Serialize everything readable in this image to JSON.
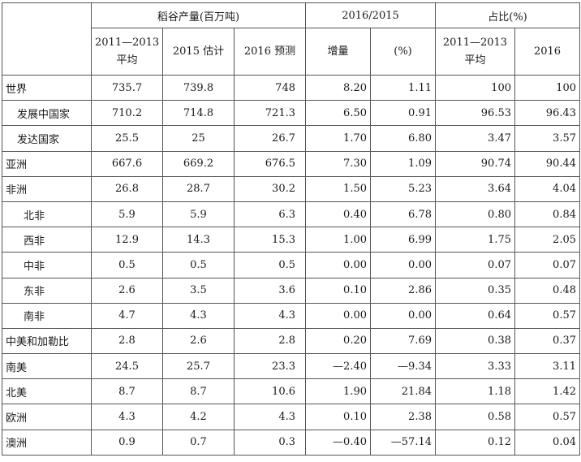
{
  "header": {
    "group1": "稻谷产量(百万吨)",
    "group2": "2016/2015",
    "group3": "占比(%)",
    "sub": {
      "c1_line1": "2011—2013",
      "c1_line2": "平均",
      "c2": "2015 估计",
      "c3": "2016 预测",
      "c4": "增量",
      "c5": "(%)",
      "c6_line1": "2011—2013",
      "c6_line2": "平均",
      "c7": "2016"
    }
  },
  "rows": [
    {
      "label": "世界",
      "indent": 0,
      "c1": "735.7",
      "c2": "739.8",
      "c3": "748",
      "c4": "8.20",
      "c5": "1.11",
      "c6": "100",
      "c7": "100"
    },
    {
      "label": "发展中国家",
      "indent": 1,
      "c1": "710.2",
      "c2": "714.8",
      "c3": "721.3",
      "c4": "6.50",
      "c5": "0.91",
      "c6": "96.53",
      "c7": "96.43"
    },
    {
      "label": "发达国家",
      "indent": 1,
      "c1": "25.5",
      "c2": "25",
      "c3": "26.7",
      "c4": "1.70",
      "c5": "6.80",
      "c6": "3.47",
      "c7": "3.57"
    },
    {
      "label": "亚洲",
      "indent": 0,
      "c1": "667.6",
      "c2": "669.2",
      "c3": "676.5",
      "c4": "7.30",
      "c5": "1.09",
      "c6": "90.74",
      "c7": "90.44"
    },
    {
      "label": "非洲",
      "indent": 0,
      "c1": "26.8",
      "c2": "28.7",
      "c3": "30.2",
      "c4": "1.50",
      "c5": "5.23",
      "c6": "3.64",
      "c7": "4.04"
    },
    {
      "label": "北非",
      "indent": 2,
      "c1": "5.9",
      "c2": "5.9",
      "c3": "6.3",
      "c4": "0.40",
      "c5": "6.78",
      "c6": "0.80",
      "c7": "0.84"
    },
    {
      "label": "西非",
      "indent": 2,
      "c1": "12.9",
      "c2": "14.3",
      "c3": "15.3",
      "c4": "1.00",
      "c5": "6.99",
      "c6": "1.75",
      "c7": "2.05"
    },
    {
      "label": "中非",
      "indent": 2,
      "c1": "0.5",
      "c2": "0.5",
      "c3": "0.5",
      "c4": "0.00",
      "c5": "0.00",
      "c6": "0.07",
      "c7": "0.07"
    },
    {
      "label": "东非",
      "indent": 2,
      "c1": "2.6",
      "c2": "3.5",
      "c3": "3.6",
      "c4": "0.10",
      "c5": "2.86",
      "c6": "0.35",
      "c7": "0.48"
    },
    {
      "label": "南非",
      "indent": 2,
      "c1": "4.7",
      "c2": "4.3",
      "c3": "4.3",
      "c4": "0.00",
      "c5": "0.00",
      "c6": "0.64",
      "c7": "0.57"
    },
    {
      "label": "中美和加勒比",
      "indent": 0,
      "c1": "2.8",
      "c2": "2.6",
      "c3": "2.8",
      "c4": "0.20",
      "c5": "7.69",
      "c6": "0.38",
      "c7": "0.37"
    },
    {
      "label": "南美",
      "indent": 0,
      "c1": "24.5",
      "c2": "25.7",
      "c3": "23.3",
      "c4": "—2.40",
      "c5": "—9.34",
      "c6": "3.33",
      "c7": "3.11"
    },
    {
      "label": "北美",
      "indent": 0,
      "c1": "8.7",
      "c2": "8.7",
      "c3": "10.6",
      "c4": "1.90",
      "c5": "21.84",
      "c6": "1.18",
      "c7": "1.42"
    },
    {
      "label": "欧洲",
      "indent": 0,
      "c1": "4.3",
      "c2": "4.2",
      "c3": "4.3",
      "c4": "0.10",
      "c5": "2.38",
      "c6": "0.58",
      "c7": "0.57"
    },
    {
      "label": "澳洲",
      "indent": 0,
      "c1": "0.9",
      "c2": "0.7",
      "c3": "0.3",
      "c4": "—0.40",
      "c5": "—57.14",
      "c6": "0.12",
      "c7": "0.04"
    }
  ]
}
